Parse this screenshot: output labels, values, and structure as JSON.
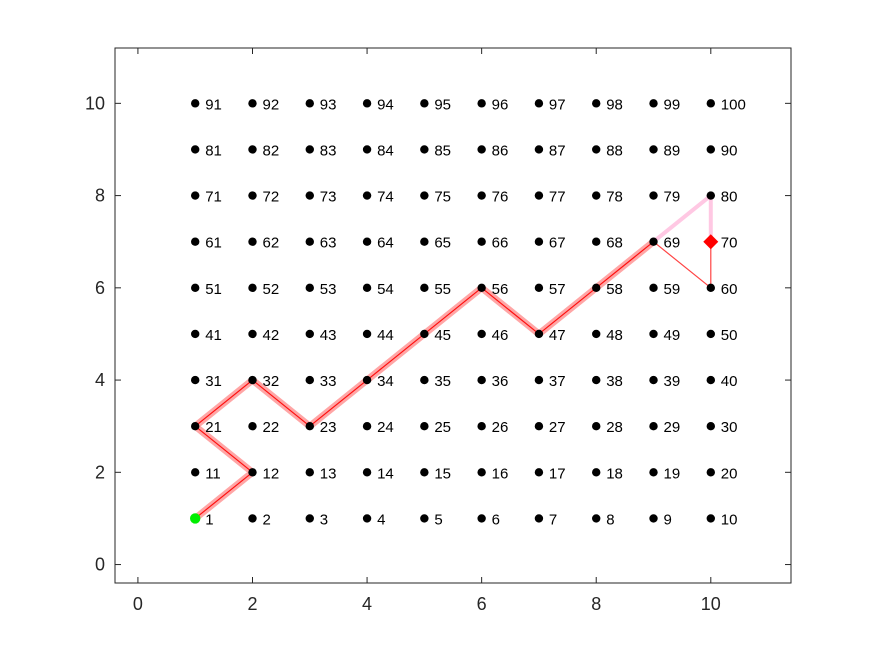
{
  "chart_data": {
    "type": "scatter",
    "title": "",
    "xlabel": "",
    "ylabel": "",
    "xlim": [
      -0.4,
      11.4
    ],
    "ylim": [
      -0.4,
      11.2
    ],
    "xticks": [
      0,
      2,
      4,
      6,
      8,
      10
    ],
    "yticks": [
      0,
      2,
      4,
      6,
      8,
      10
    ],
    "grid": false,
    "legend": "none",
    "nodes": {
      "grid_columns": [
        1,
        2,
        3,
        4,
        5,
        6,
        7,
        8,
        9,
        10
      ],
      "grid_rows": [
        1,
        2,
        3,
        4,
        5,
        6,
        7,
        8,
        9,
        10
      ],
      "labels": [
        "1",
        "2",
        "3",
        "4",
        "5",
        "6",
        "7",
        "8",
        "9",
        "10",
        "11",
        "12",
        "13",
        "14",
        "15",
        "16",
        "17",
        "18",
        "19",
        "20",
        "21",
        "22",
        "23",
        "24",
        "25",
        "26",
        "27",
        "28",
        "29",
        "30",
        "31",
        "32",
        "33",
        "34",
        "35",
        "36",
        "37",
        "38",
        "39",
        "40",
        "41",
        "42",
        "43",
        "44",
        "45",
        "46",
        "47",
        "48",
        "49",
        "50",
        "51",
        "52",
        "53",
        "54",
        "55",
        "56",
        "57",
        "58",
        "59",
        "60",
        "61",
        "62",
        "63",
        "64",
        "65",
        "66",
        "67",
        "68",
        "69",
        "70",
        "71",
        "72",
        "73",
        "74",
        "75",
        "76",
        "77",
        "78",
        "79",
        "80",
        "81",
        "82",
        "83",
        "84",
        "85",
        "86",
        "87",
        "88",
        "89",
        "90",
        "91",
        "92",
        "93",
        "94",
        "95",
        "96",
        "97",
        "98",
        "99",
        "100"
      ],
      "color": "#000000"
    },
    "start": {
      "label": "1",
      "x": 1,
      "y": 1,
      "color": "#00ee00"
    },
    "goal": {
      "label": "70",
      "x": 10,
      "y": 7,
      "color": "#ff0000"
    },
    "path": {
      "color": "#ff0000",
      "points": [
        [
          1,
          1
        ],
        [
          2,
          2
        ],
        [
          1,
          3
        ],
        [
          2,
          4
        ],
        [
          3,
          3
        ],
        [
          4,
          4
        ],
        [
          5,
          5
        ],
        [
          6,
          6
        ],
        [
          7,
          5
        ],
        [
          8,
          6
        ],
        [
          9,
          7
        ]
      ]
    },
    "candidate_edges": [
      {
        "from": [
          9,
          7
        ],
        "to": [
          10,
          8
        ],
        "color": "#ffb6d9"
      },
      {
        "from": [
          10,
          8
        ],
        "to": [
          10,
          7
        ],
        "color": "#ffb6d9"
      },
      {
        "from": [
          9,
          7
        ],
        "to": [
          10,
          6
        ],
        "color": "#ff3030"
      },
      {
        "from": [
          10,
          6
        ],
        "to": [
          10,
          7
        ],
        "color": "#ff3030"
      }
    ]
  }
}
